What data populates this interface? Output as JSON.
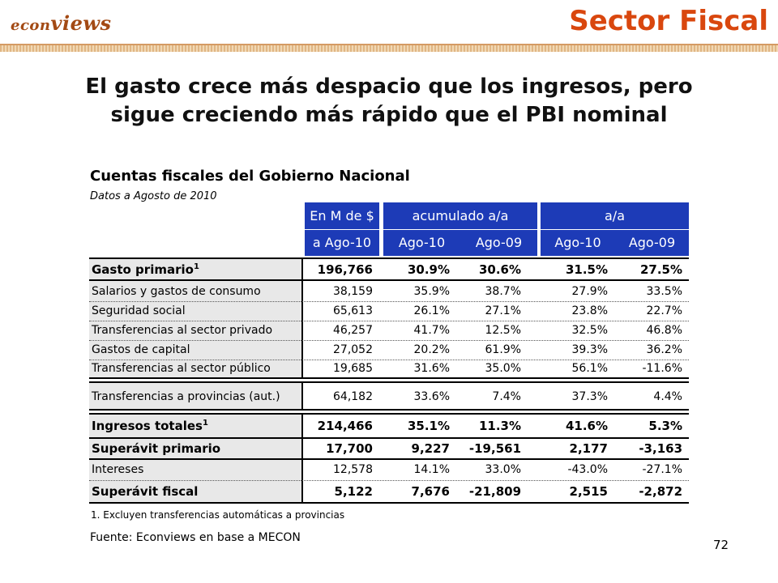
{
  "header": {
    "logo_prefix": "econ",
    "logo_suffix": "views",
    "section": "Sector Fiscal",
    "headline_line1": "El gasto crece más despacio que los ingresos, pero",
    "headline_line2": "sigue creciendo más rápido que el PBI nominal"
  },
  "table": {
    "title": "Cuentas fiscales del Gobierno Nacional",
    "subtitle": "Datos a Agosto de 2010",
    "col_group_1": "En M de $",
    "col_group_2": "acumulado a/a",
    "col_group_3": "a/a",
    "col_headers": [
      "a Ago-10",
      "Ago-10",
      "Ago-09",
      "Ago-10",
      "Ago-09"
    ],
    "rows": [
      {
        "label": "Gasto primario",
        "sup": "1",
        "v": [
          "196,766",
          "30.9%",
          "30.6%",
          "31.5%",
          "27.5%"
        ]
      },
      {
        "label": "Salarios y gastos de consumo",
        "v": [
          "38,159",
          "35.9%",
          "38.7%",
          "27.9%",
          "33.5%"
        ]
      },
      {
        "label": "Seguridad social",
        "v": [
          "65,613",
          "26.1%",
          "27.1%",
          "23.8%",
          "22.7%"
        ]
      },
      {
        "label": "Transferencias al sector privado",
        "v": [
          "46,257",
          "41.7%",
          "12.5%",
          "32.5%",
          "46.8%"
        ]
      },
      {
        "label": "Gastos de capital",
        "v": [
          "27,052",
          "20.2%",
          "61.9%",
          "39.3%",
          "36.2%"
        ]
      },
      {
        "label": "Transferencias al sector público",
        "v": [
          "19,685",
          "31.6%",
          "35.0%",
          "56.1%",
          "-11.6%"
        ]
      },
      {
        "label": "Transferencias a provincias (aut.)",
        "v": [
          "64,182",
          "33.6%",
          "7.4%",
          "37.3%",
          "4.4%"
        ]
      },
      {
        "label": "Ingresos totales",
        "sup": "1",
        "v": [
          "214,466",
          "35.1%",
          "11.3%",
          "41.6%",
          "5.3%"
        ]
      },
      {
        "label": "Superávit primario",
        "v": [
          "17,700",
          "9,227",
          "-19,561",
          "2,177",
          "-3,163"
        ]
      },
      {
        "label": "Intereses",
        "v": [
          "12,578",
          "14.1%",
          "33.0%",
          "-43.0%",
          "-27.1%"
        ]
      },
      {
        "label": "Superávit fiscal",
        "v": [
          "5,122",
          "7,676",
          "-21,809",
          "2,515",
          "-2,872"
        ]
      }
    ],
    "footnote": "1. Excluyen transferencias automáticas a provincias",
    "source": "Fuente: Econviews en base a MECON"
  },
  "page_number": "72",
  "colors": {
    "header_blue": "#1d3bb7",
    "accent_orange": "#d9470e",
    "logo_brown": "#a34a14"
  }
}
